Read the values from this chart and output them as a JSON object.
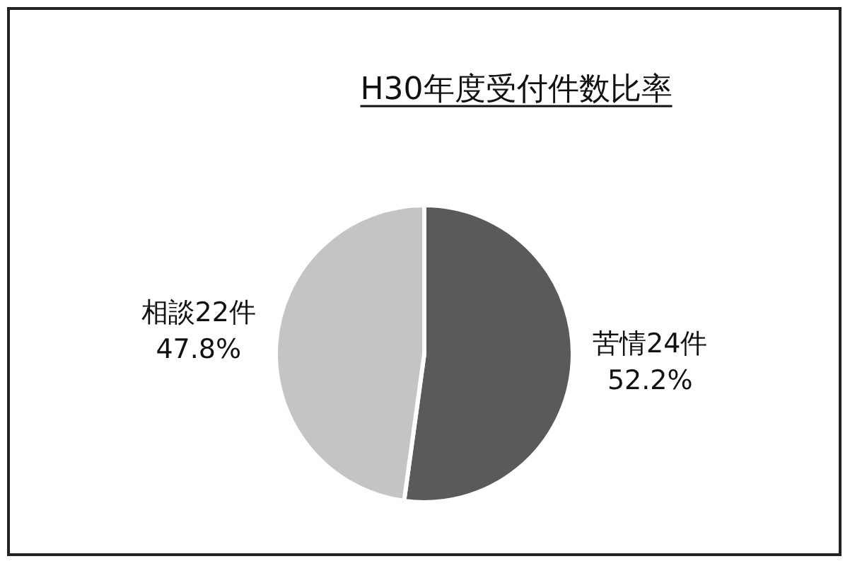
{
  "chart_data": {
    "type": "pie",
    "title": "H30年度受付件数比率",
    "categories": [
      "苦情",
      "相談"
    ],
    "values": [
      24,
      22
    ],
    "value_labels": [
      "24件 52.2%",
      "22件 47.8%"
    ],
    "colors": [
      "#5a5a5a",
      "#c4c4c4"
    ]
  }
}
